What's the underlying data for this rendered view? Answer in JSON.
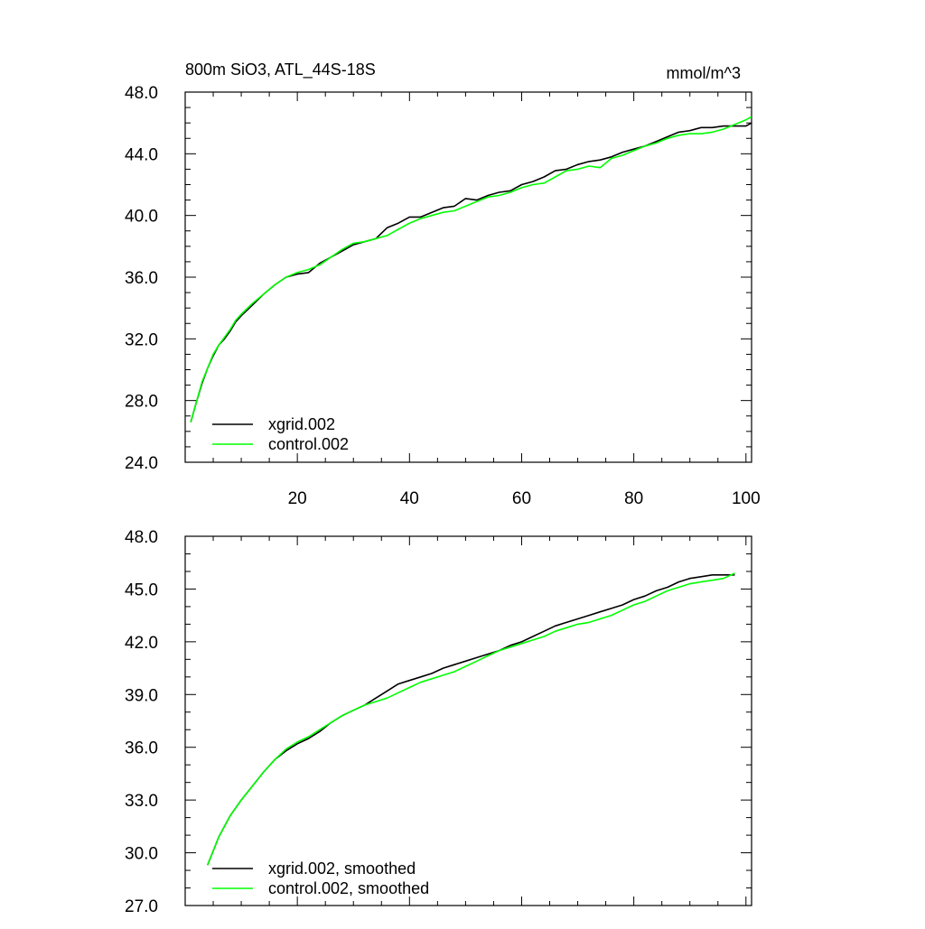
{
  "chart_data": [
    {
      "type": "line",
      "title": "800m SiO3, ATL_44S-18S",
      "units": "mmol/m^3",
      "xlim": [
        0,
        101
      ],
      "ylim": [
        24,
        48
      ],
      "xticks": [
        20,
        40,
        60,
        80,
        100
      ],
      "xtick_labels": [
        "20",
        "40",
        "60",
        "80",
        "100"
      ],
      "yticks": [
        24,
        28,
        32,
        36,
        40,
        44,
        48
      ],
      "ytick_labels": [
        "24.0",
        "28.0",
        "32.0",
        "36.0",
        "40.0",
        "44.0",
        "48.0"
      ],
      "legend_position": "bottom-left",
      "series": [
        {
          "name": "xgrid.002",
          "color": "#000000",
          "x": [
            1,
            2,
            3,
            4,
            5,
            6,
            7,
            8,
            9,
            10,
            12,
            14,
            16,
            18,
            20,
            22,
            24,
            26,
            28,
            30,
            32,
            34,
            36,
            38,
            40,
            42,
            44,
            46,
            48,
            50,
            52,
            54,
            56,
            58,
            60,
            62,
            64,
            66,
            68,
            70,
            72,
            74,
            76,
            78,
            80,
            82,
            84,
            86,
            88,
            90,
            92,
            94,
            96,
            98,
            100,
            101
          ],
          "y": [
            26.6,
            27.9,
            29.1,
            30.1,
            30.9,
            31.6,
            32.0,
            32.5,
            33.1,
            33.5,
            34.2,
            34.9,
            35.5,
            36.0,
            36.2,
            36.3,
            36.9,
            37.3,
            37.7,
            38.1,
            38.3,
            38.5,
            39.2,
            39.5,
            39.9,
            39.9,
            40.2,
            40.5,
            40.6,
            41.1,
            41.0,
            41.3,
            41.5,
            41.6,
            42.0,
            42.2,
            42.5,
            42.9,
            43.0,
            43.3,
            43.5,
            43.6,
            43.8,
            44.1,
            44.3,
            44.5,
            44.8,
            45.1,
            45.4,
            45.5,
            45.7,
            45.7,
            45.8,
            45.8,
            45.8,
            46.0
          ]
        },
        {
          "name": "control.002",
          "color": "#00ff00",
          "x": [
            1,
            2,
            3,
            4,
            5,
            6,
            7,
            8,
            9,
            10,
            12,
            14,
            16,
            18,
            20,
            22,
            24,
            26,
            28,
            30,
            32,
            34,
            36,
            38,
            40,
            42,
            44,
            46,
            48,
            50,
            52,
            54,
            56,
            58,
            60,
            62,
            64,
            66,
            68,
            70,
            72,
            74,
            76,
            78,
            80,
            82,
            84,
            86,
            88,
            90,
            92,
            94,
            96,
            98,
            100,
            101
          ],
          "y": [
            26.6,
            27.9,
            29.2,
            30.1,
            31.0,
            31.6,
            32.1,
            32.6,
            33.2,
            33.6,
            34.3,
            34.9,
            35.5,
            36.0,
            36.3,
            36.5,
            36.8,
            37.3,
            37.8,
            38.2,
            38.3,
            38.5,
            38.7,
            39.1,
            39.5,
            39.8,
            40.0,
            40.2,
            40.3,
            40.6,
            40.9,
            41.2,
            41.3,
            41.5,
            41.8,
            42.0,
            42.1,
            42.5,
            42.9,
            43.0,
            43.2,
            43.1,
            43.7,
            43.9,
            44.2,
            44.5,
            44.7,
            45.0,
            45.2,
            45.3,
            45.3,
            45.4,
            45.6,
            45.9,
            46.2,
            46.4
          ]
        }
      ]
    },
    {
      "type": "line",
      "xlim": [
        0,
        101
      ],
      "ylim": [
        27,
        48
      ],
      "xticks": [
        20,
        40,
        60,
        80,
        100
      ],
      "yticks": [
        27,
        30,
        33,
        36,
        39,
        42,
        45,
        48
      ],
      "ytick_labels": [
        "27.0",
        "30.0",
        "33.0",
        "36.0",
        "39.0",
        "42.0",
        "45.0",
        "48.0"
      ],
      "legend_position": "bottom-left",
      "series": [
        {
          "name": "xgrid.002, smoothed",
          "color": "#000000",
          "x": [
            4,
            6,
            8,
            10,
            12,
            14,
            16,
            18,
            20,
            22,
            24,
            26,
            28,
            30,
            32,
            34,
            36,
            38,
            40,
            42,
            44,
            46,
            48,
            50,
            52,
            54,
            56,
            58,
            60,
            62,
            64,
            66,
            68,
            70,
            72,
            74,
            76,
            78,
            80,
            82,
            84,
            86,
            88,
            90,
            92,
            94,
            96,
            98
          ],
          "y": [
            29.3,
            30.9,
            32.1,
            33.0,
            33.8,
            34.6,
            35.3,
            35.8,
            36.2,
            36.5,
            36.9,
            37.4,
            37.8,
            38.1,
            38.4,
            38.8,
            39.2,
            39.6,
            39.8,
            40.0,
            40.2,
            40.5,
            40.7,
            40.9,
            41.1,
            41.3,
            41.5,
            41.8,
            42.0,
            42.3,
            42.6,
            42.9,
            43.1,
            43.3,
            43.5,
            43.7,
            43.9,
            44.1,
            44.4,
            44.6,
            44.9,
            45.1,
            45.4,
            45.6,
            45.7,
            45.8,
            45.8,
            45.8
          ]
        },
        {
          "name": "control.002, smoothed",
          "color": "#00ff00",
          "x": [
            4,
            6,
            8,
            10,
            12,
            14,
            16,
            18,
            20,
            22,
            24,
            26,
            28,
            30,
            32,
            34,
            36,
            38,
            40,
            42,
            44,
            46,
            48,
            50,
            52,
            54,
            56,
            58,
            60,
            62,
            64,
            66,
            68,
            70,
            72,
            74,
            76,
            78,
            80,
            82,
            84,
            86,
            88,
            90,
            92,
            94,
            96,
            98
          ],
          "y": [
            29.3,
            30.9,
            32.1,
            33.0,
            33.8,
            34.6,
            35.3,
            35.9,
            36.3,
            36.6,
            37.0,
            37.4,
            37.8,
            38.1,
            38.4,
            38.6,
            38.8,
            39.1,
            39.4,
            39.7,
            39.9,
            40.1,
            40.3,
            40.6,
            40.9,
            41.2,
            41.5,
            41.7,
            41.9,
            42.1,
            42.3,
            42.6,
            42.8,
            43.0,
            43.1,
            43.3,
            43.5,
            43.8,
            44.1,
            44.3,
            44.6,
            44.9,
            45.1,
            45.3,
            45.4,
            45.5,
            45.6,
            45.9
          ]
        }
      ]
    }
  ]
}
